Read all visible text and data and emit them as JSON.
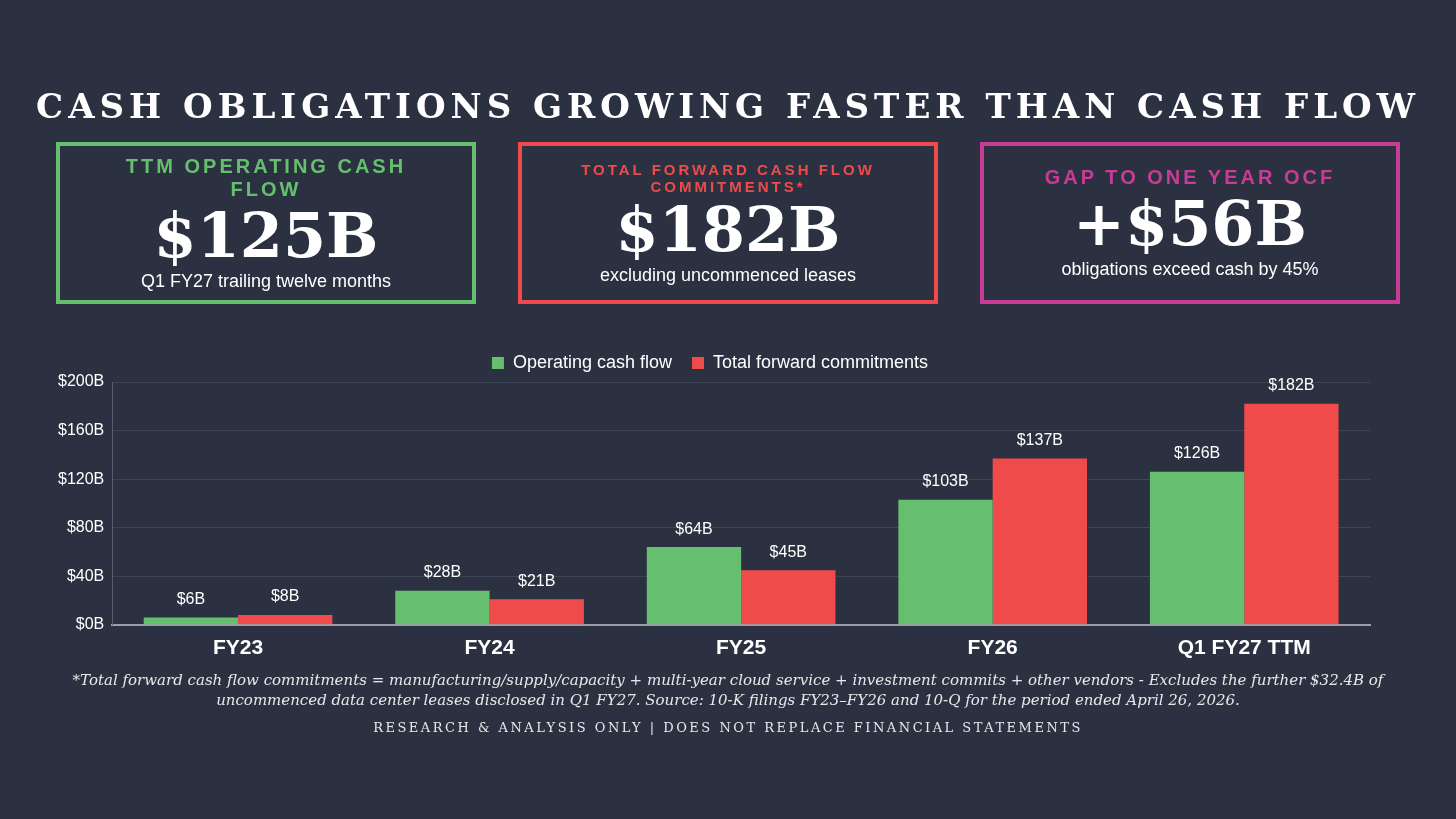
{
  "chart_data": [
    {
      "type": "other",
      "title": "TTM OPERATING CASH FLOW",
      "subtitle": "$125B",
      "annotations": [
        "Q1 FY27 trailing twelve months"
      ],
      "color": "#66bf6e"
    },
    {
      "type": "other",
      "title": "TOTAL FORWARD CASH FLOW COMMITMENTS*",
      "subtitle": "$182B",
      "annotations": [
        "excluding uncommenced leases"
      ],
      "color": "#ef4b4b"
    },
    {
      "type": "other",
      "title": "GAP TO ONE YEAR OCF",
      "subtitle": "+$56B",
      "annotations": [
        "obligations exceed cash by 45%"
      ],
      "color": "#c83c96"
    },
    {
      "type": "bar",
      "title": "CASH OBLIGATIONS GROWING FASTER THAN CASH FLOW",
      "categories": [
        "FY23",
        "FY24",
        "FY25",
        "FY26",
        "Q1 FY27 TTM"
      ],
      "series": [
        {
          "name": "Operating cash flow",
          "color": "#66bf6e",
          "values": [
            6,
            28,
            64,
            103,
            126
          ],
          "value_labels": [
            "$6B",
            "$28B",
            "$64B",
            "$103B",
            "$126B"
          ]
        },
        {
          "name": "Total forward commitments",
          "color": "#ef4b4b",
          "values": [
            8,
            21,
            45,
            137,
            182
          ],
          "value_labels": [
            "$8B",
            "$21B",
            "$45B",
            "$137B",
            "$182B"
          ]
        }
      ],
      "ylim": [
        0,
        200
      ],
      "yticks": [
        {
          "value": 0,
          "label": "$0B"
        },
        {
          "value": 40,
          "label": "$40B"
        },
        {
          "value": 80,
          "label": "$80B"
        },
        {
          "value": 120,
          "label": "$120B"
        },
        {
          "value": 160,
          "label": "$160B"
        },
        {
          "value": 200,
          "label": "$200B"
        }
      ],
      "grid": "y",
      "legend": "top",
      "annotations": [
        "*Total forward cash flow commitments = manufacturing/supply/capacity + multi-year cloud service + investment commits + other vendors - Excludes the further $32.4B of uncommenced data center leases disclosed in Q1 FY27. Source: 10-K filings FY23–FY26 and 10-Q for the period ended April 26, 2026.",
        "RESEARCH & ANALYSIS ONLY | DOES NOT REPLACE FINANCIAL STATEMENTS"
      ]
    }
  ]
}
